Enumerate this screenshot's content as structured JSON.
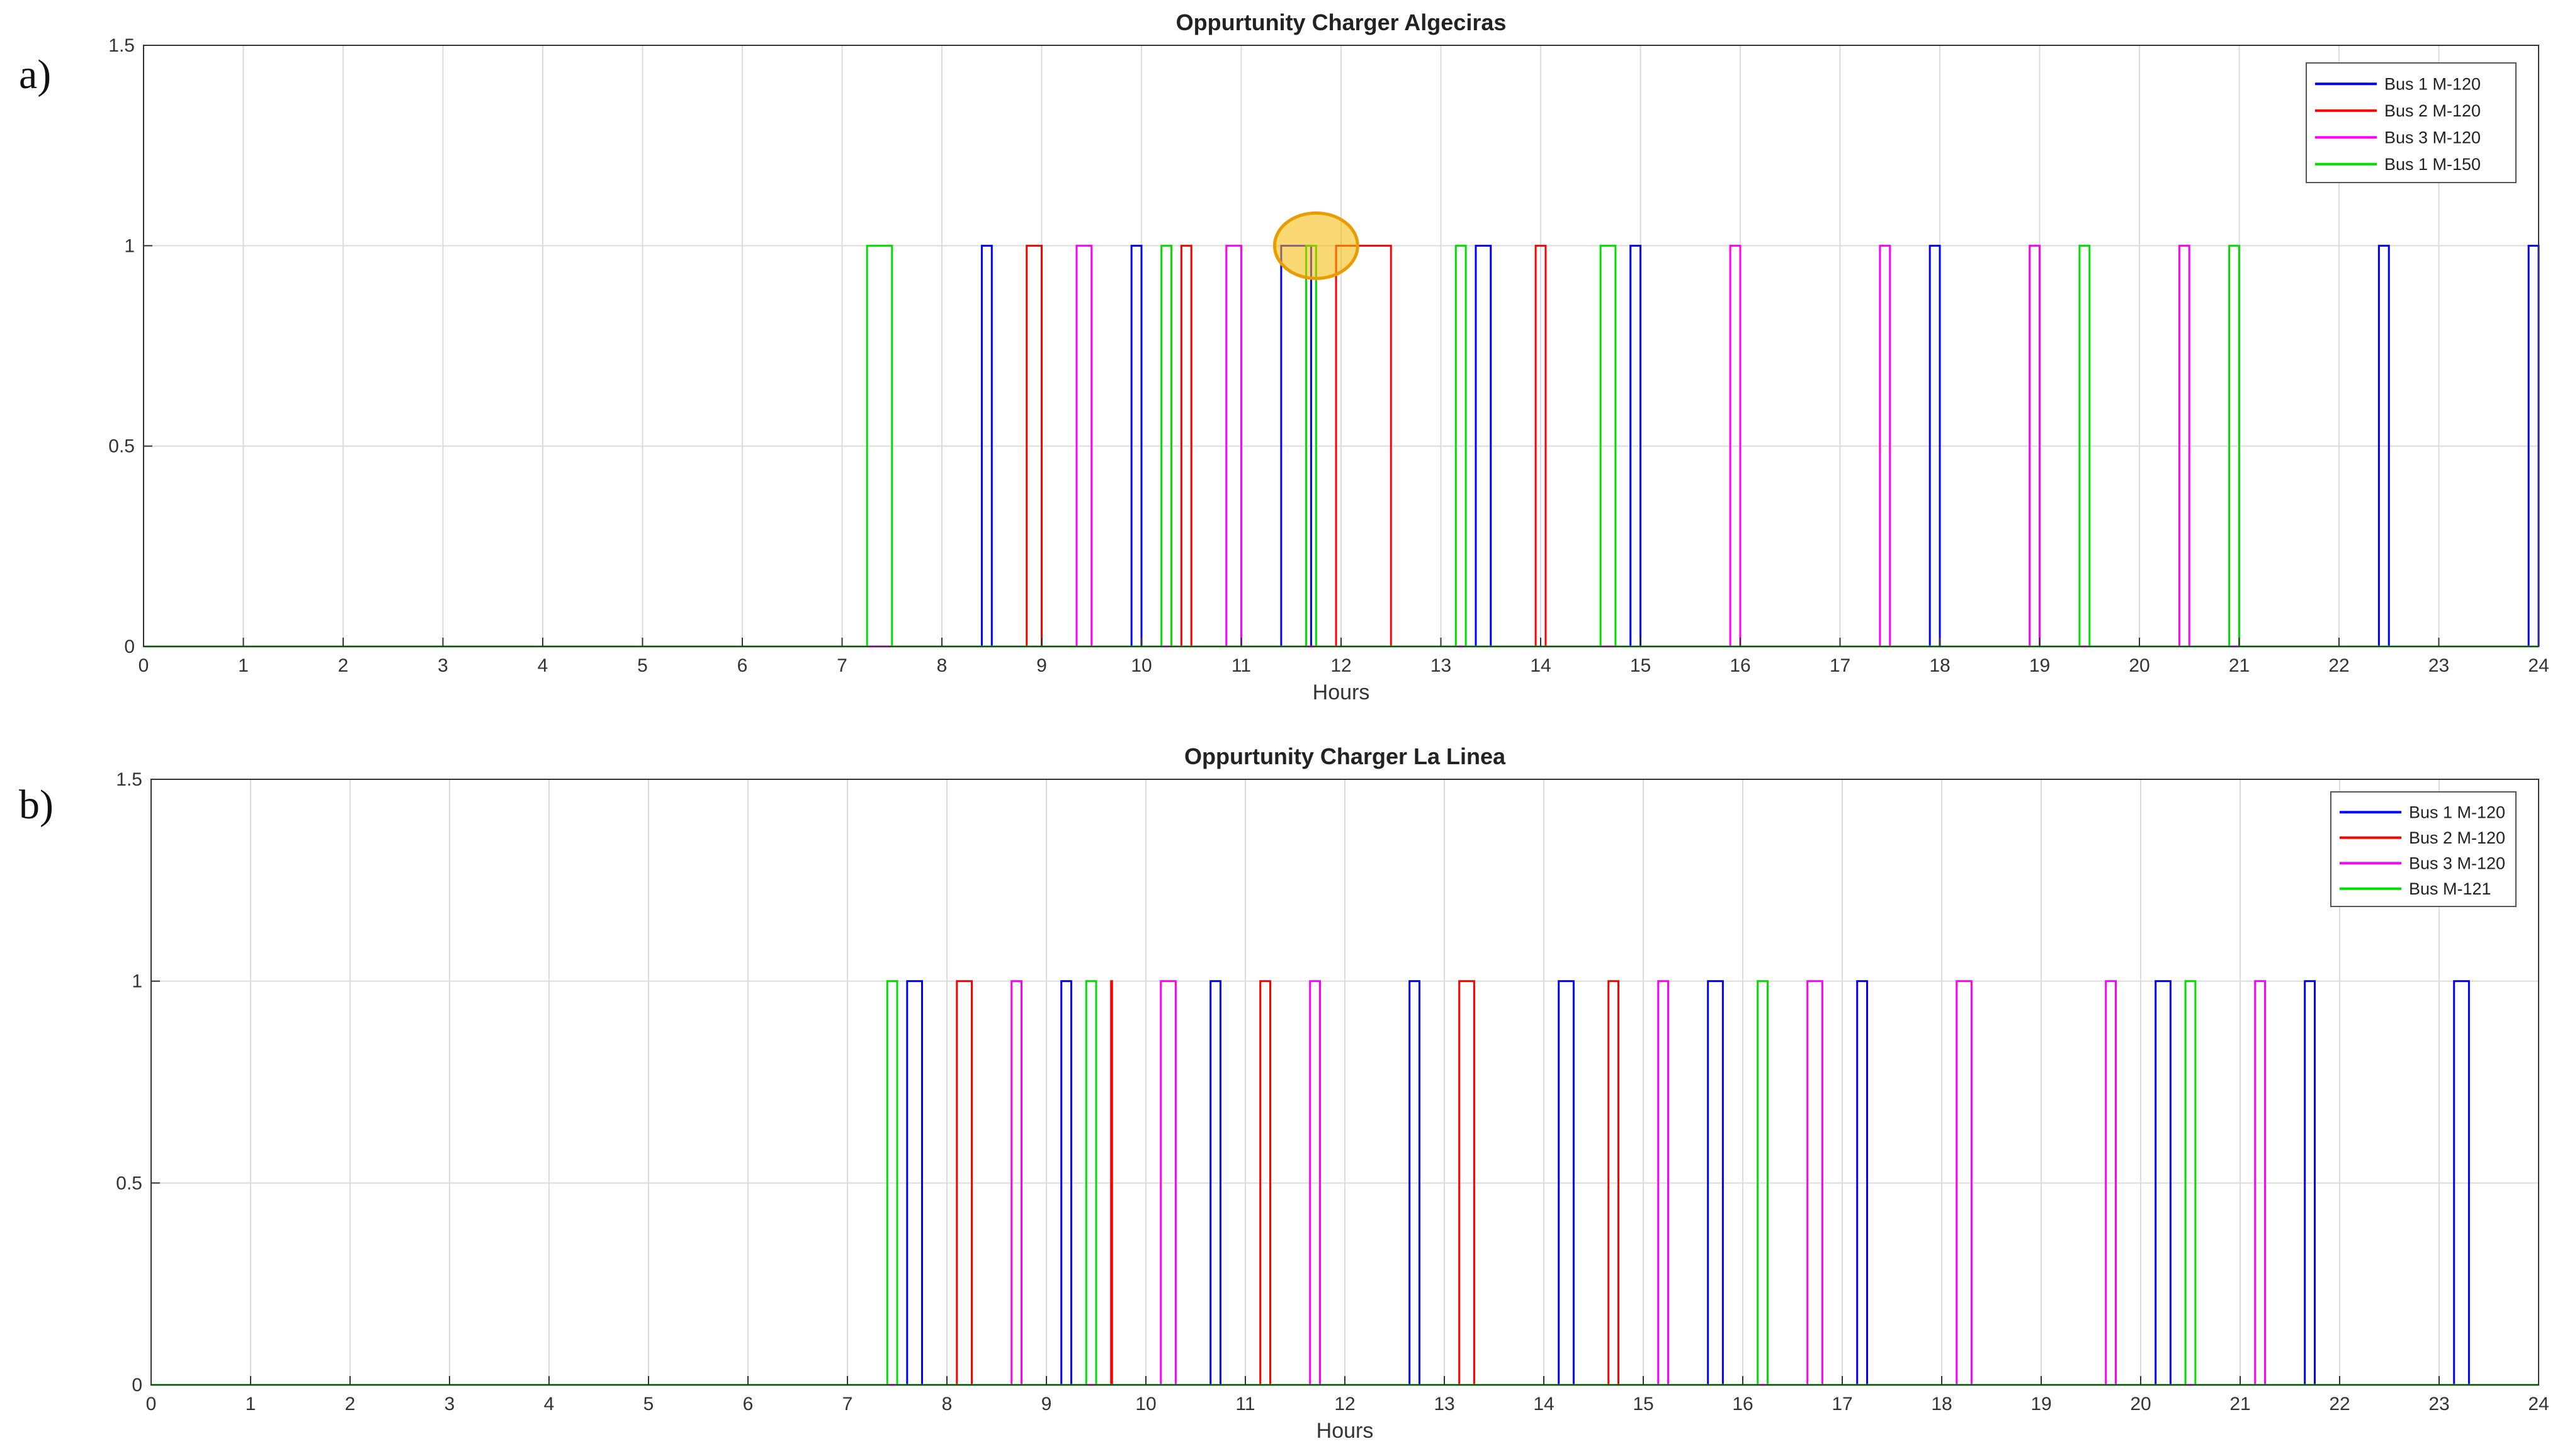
{
  "chart_data": [
    {
      "panel": "a)",
      "type": "line",
      "title": "Oppurtunity Charger Algeciras",
      "xlabel": "Hours",
      "ylabel": "",
      "xlim": [
        0,
        24
      ],
      "ylim": [
        0,
        1.5
      ],
      "xticks": [
        0,
        1,
        2,
        3,
        4,
        5,
        6,
        7,
        8,
        9,
        10,
        11,
        12,
        13,
        14,
        15,
        16,
        17,
        18,
        19,
        20,
        21,
        22,
        23,
        24
      ],
      "yticks": [
        0,
        0.5,
        1,
        1.5
      ],
      "grid": true,
      "legend_position": "top-right",
      "series": [
        {
          "name": "Bus 1 M-120",
          "color": "#0000ff",
          "intervals": [
            [
              8.4,
              8.5
            ],
            [
              9.9,
              10.0
            ],
            [
              11.4,
              11.7
            ],
            [
              13.35,
              13.5
            ],
            [
              14.9,
              15.0
            ],
            [
              17.9,
              18.0
            ],
            [
              22.4,
              22.5
            ],
            [
              23.9,
              24.0
            ]
          ]
        },
        {
          "name": "Bus 2 M-120",
          "color": "#ff0000",
          "intervals": [
            [
              8.85,
              9.0
            ],
            [
              10.4,
              10.5
            ],
            [
              11.95,
              12.5
            ],
            [
              13.95,
              14.05
            ]
          ]
        },
        {
          "name": "Bus 3 M-120",
          "color": "#ff00ff",
          "intervals": [
            [
              9.35,
              9.5
            ],
            [
              10.85,
              11.0
            ],
            [
              15.9,
              16.0
            ],
            [
              17.4,
              17.5
            ],
            [
              18.9,
              19.0
            ],
            [
              20.4,
              20.5
            ]
          ]
        },
        {
          "name": "Bus 1 M-150",
          "color": "#00dd00",
          "intervals": [
            [
              7.25,
              7.5
            ],
            [
              10.2,
              10.3
            ],
            [
              11.65,
              11.75
            ],
            [
              13.15,
              13.25
            ],
            [
              14.6,
              14.75
            ],
            [
              19.4,
              19.5
            ],
            [
              20.9,
              21.0
            ]
          ]
        }
      ],
      "annotation": {
        "type": "highlight-circle",
        "x": 11.75,
        "y": 1.0,
        "color": "#f5b800"
      }
    },
    {
      "panel": "b)",
      "type": "line",
      "title": "Oppurtunity Charger La Linea",
      "xlabel": "Hours",
      "ylabel": "",
      "xlim": [
        0,
        24
      ],
      "ylim": [
        0,
        1.5
      ],
      "xticks": [
        0,
        1,
        2,
        3,
        4,
        5,
        6,
        7,
        8,
        9,
        10,
        11,
        12,
        13,
        14,
        15,
        16,
        17,
        18,
        19,
        20,
        21,
        22,
        23,
        24
      ],
      "yticks": [
        0,
        0.5,
        1,
        1.5
      ],
      "grid": true,
      "legend_position": "top-right",
      "series": [
        {
          "name": "Bus 1 M-120",
          "color": "#0000ff",
          "intervals": [
            [
              7.6,
              7.75
            ],
            [
              9.15,
              9.25
            ],
            [
              10.65,
              10.75
            ],
            [
              12.65,
              12.75
            ],
            [
              14.15,
              14.3
            ],
            [
              15.65,
              15.8
            ],
            [
              17.15,
              17.25
            ],
            [
              20.15,
              20.3
            ],
            [
              21.65,
              21.75
            ],
            [
              23.15,
              23.3
            ]
          ]
        },
        {
          "name": "Bus 2 M-120",
          "color": "#ff0000",
          "intervals": [
            [
              8.1,
              8.25
            ],
            [
              9.65,
              9.66
            ],
            [
              11.15,
              11.25
            ],
            [
              13.15,
              13.3
            ],
            [
              14.65,
              14.75
            ]
          ]
        },
        {
          "name": "Bus 3 M-120",
          "color": "#ff00ff",
          "intervals": [
            [
              8.65,
              8.75
            ],
            [
              10.15,
              10.3
            ],
            [
              11.65,
              11.75
            ],
            [
              15.15,
              15.25
            ],
            [
              16.65,
              16.8
            ],
            [
              18.15,
              18.3
            ],
            [
              19.65,
              19.75
            ],
            [
              21.15,
              21.25
            ]
          ]
        },
        {
          "name": "Bus M-121",
          "color": "#00dd00",
          "intervals": [
            [
              7.4,
              7.5
            ],
            [
              9.4,
              9.5
            ],
            [
              16.15,
              16.25
            ],
            [
              20.45,
              20.55
            ]
          ]
        }
      ]
    }
  ]
}
